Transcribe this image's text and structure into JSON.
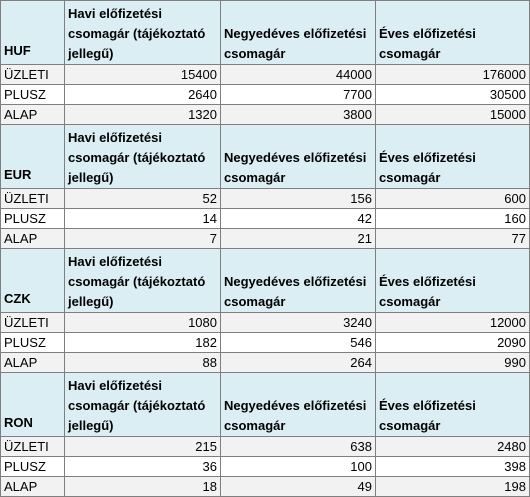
{
  "columns": {
    "monthly": "Havi előfizetési csomagár (tájékoztató jellegű)",
    "quarterly": "Negyedéves előfizetési csomagár",
    "yearly": "Éves előfizetési csomagár"
  },
  "sections": [
    {
      "currency": "HUF",
      "rows": [
        {
          "label": "ÜZLETI",
          "monthly": "15400",
          "quarterly": "44000",
          "yearly": "176000"
        },
        {
          "label": "PLUSZ",
          "monthly": "2640",
          "quarterly": "7700",
          "yearly": "30500"
        },
        {
          "label": "ALAP",
          "monthly": "1320",
          "quarterly": "3800",
          "yearly": "15000"
        }
      ]
    },
    {
      "currency": "EUR",
      "rows": [
        {
          "label": "ÜZLETI",
          "monthly": "52",
          "quarterly": "156",
          "yearly": "600"
        },
        {
          "label": "PLUSZ",
          "monthly": "14",
          "quarterly": "42",
          "yearly": "160"
        },
        {
          "label": "ALAP",
          "monthly": "7",
          "quarterly": "21",
          "yearly": "77"
        }
      ]
    },
    {
      "currency": "CZK",
      "rows": [
        {
          "label": "ÜZLETI",
          "monthly": "1080",
          "quarterly": "3240",
          "yearly": "12000"
        },
        {
          "label": "PLUSZ",
          "monthly": "182",
          "quarterly": "546",
          "yearly": "2090"
        },
        {
          "label": "ALAP",
          "monthly": "88",
          "quarterly": "264",
          "yearly": "990"
        }
      ]
    },
    {
      "currency": "RON",
      "rows": [
        {
          "label": "ÜZLETI",
          "monthly": "215",
          "quarterly": "638",
          "yearly": "2480"
        },
        {
          "label": "PLUSZ",
          "monthly": "36",
          "quarterly": "100",
          "yearly": "398"
        },
        {
          "label": "ALAP",
          "monthly": "18",
          "quarterly": "49",
          "yearly": "198"
        }
      ]
    }
  ]
}
